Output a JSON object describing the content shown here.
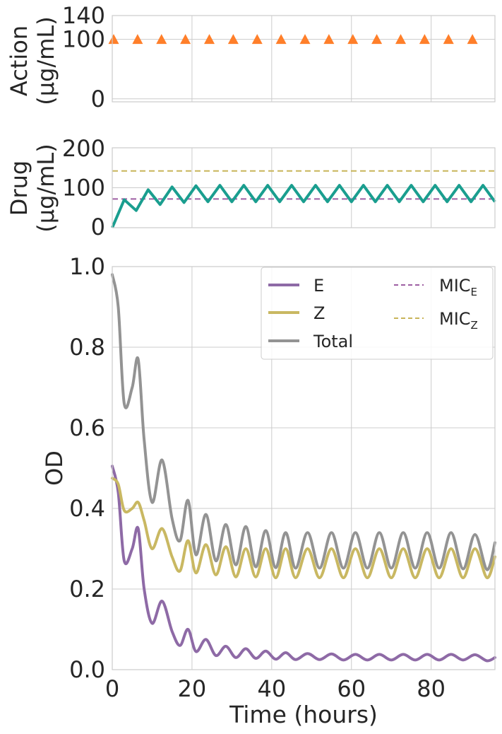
{
  "chart_data": [
    {
      "type": "scatter",
      "ylabel_line1": "Action",
      "ylabel_line2": "(µg/mL)",
      "ylim": [
        -5,
        140
      ],
      "xlim": [
        0,
        96
      ],
      "yticks": [
        "140",
        "100",
        "0"
      ],
      "ytick_values": [
        140,
        100,
        0
      ],
      "grid": true,
      "series": [
        {
          "marker": "triangle",
          "color": "#ff7f2a",
          "x": [
            0,
            6,
            12,
            18,
            24,
            30,
            36,
            42,
            48,
            54,
            60,
            66,
            72,
            78,
            84,
            90
          ],
          "y": [
            100,
            100,
            100,
            100,
            100,
            100,
            100,
            100,
            100,
            100,
            100,
            100,
            100,
            100,
            100,
            100
          ]
        }
      ]
    },
    {
      "type": "line",
      "ylabel_line1": "Drug",
      "ylabel_line2": "(µg/mL)",
      "ylim": [
        0,
        200
      ],
      "xlim": [
        0,
        96
      ],
      "yticks": [
        "200",
        "100",
        "0"
      ],
      "ytick_values": [
        200,
        100,
        0
      ],
      "grid": true,
      "series": [
        {
          "color": "#1a9e8f",
          "x": [
            0,
            3,
            6,
            9,
            12,
            15,
            18,
            21,
            24,
            27,
            30,
            33,
            36,
            39,
            42,
            45,
            48,
            51,
            54,
            57,
            60,
            63,
            66,
            69,
            72,
            75,
            78,
            81,
            84,
            87,
            90,
            93,
            96
          ],
          "y": [
            0,
            70,
            43,
            95,
            58,
            102,
            63,
            105,
            65,
            106,
            65,
            106,
            65,
            106,
            65,
            106,
            65,
            106,
            65,
            106,
            65,
            106,
            65,
            106,
            65,
            106,
            65,
            106,
            65,
            106,
            65,
            106,
            65
          ]
        }
      ],
      "hlines": [
        {
          "y": 72,
          "color": "#9e5fa3",
          "style": "dashed"
        },
        {
          "y": 142,
          "color": "#c8b55a",
          "style": "dashed"
        }
      ]
    },
    {
      "type": "line",
      "xlabel": "Time (hours)",
      "ylabel": "OD",
      "xlim": [
        0,
        96
      ],
      "ylim": [
        0.0,
        1.0
      ],
      "xticks": [
        "0",
        "20",
        "40",
        "60",
        "80"
      ],
      "xtick_values": [
        0,
        20,
        40,
        60,
        80
      ],
      "yticks": [
        "0.0",
        "0.2",
        "0.4",
        "0.6",
        "0.8",
        "1.0"
      ],
      "ytick_values": [
        0.0,
        0.2,
        0.4,
        0.6,
        0.8,
        1.0
      ],
      "grid": true,
      "legend_position": "top-right",
      "series": [
        {
          "name": "E",
          "color": "#8e6aa6",
          "x": [
            0,
            1.5,
            3,
            5,
            6.5,
            8,
            10,
            12.5,
            15,
            17,
            19,
            21,
            23.5,
            26,
            28.5,
            31,
            33.5,
            36,
            38.5,
            41,
            43.5,
            46,
            49,
            52,
            55,
            58,
            61,
            64,
            67,
            70,
            73,
            76,
            79,
            82,
            85,
            88,
            91,
            94,
            96
          ],
          "y": [
            0.505,
            0.44,
            0.27,
            0.3,
            0.35,
            0.2,
            0.115,
            0.17,
            0.095,
            0.06,
            0.1,
            0.045,
            0.075,
            0.035,
            0.058,
            0.03,
            0.052,
            0.028,
            0.046,
            0.026,
            0.042,
            0.025,
            0.04,
            0.025,
            0.039,
            0.024,
            0.038,
            0.024,
            0.038,
            0.024,
            0.038,
            0.024,
            0.038,
            0.024,
            0.038,
            0.024,
            0.037,
            0.022,
            0.03
          ]
        },
        {
          "name": "Z",
          "color": "#c9b862",
          "x": [
            0,
            1.5,
            3,
            5,
            6.5,
            8,
            10,
            12.5,
            15,
            17,
            19,
            21,
            23.5,
            26,
            28.5,
            31,
            33.5,
            36,
            38.5,
            41,
            43.5,
            46,
            49,
            52,
            55,
            58,
            61,
            64,
            67,
            70,
            73,
            76,
            79,
            82,
            85,
            88,
            91,
            94,
            96
          ],
          "y": [
            0.475,
            0.46,
            0.395,
            0.4,
            0.415,
            0.37,
            0.3,
            0.35,
            0.28,
            0.245,
            0.32,
            0.24,
            0.31,
            0.235,
            0.305,
            0.23,
            0.3,
            0.23,
            0.3,
            0.228,
            0.3,
            0.228,
            0.3,
            0.228,
            0.3,
            0.228,
            0.3,
            0.228,
            0.3,
            0.228,
            0.3,
            0.228,
            0.3,
            0.228,
            0.3,
            0.228,
            0.3,
            0.228,
            0.28
          ]
        },
        {
          "name": "Total",
          "color": "#939393",
          "x": [
            0,
            1.5,
            3,
            5,
            6.5,
            8,
            10,
            12.5,
            15,
            17,
            19,
            21,
            23.5,
            26,
            28.5,
            31,
            33.5,
            36,
            38.5,
            41,
            43.5,
            46,
            49,
            52,
            55,
            58,
            61,
            64,
            67,
            70,
            73,
            76,
            79,
            82,
            85,
            88,
            91,
            94,
            96
          ],
          "y": [
            0.98,
            0.9,
            0.66,
            0.7,
            0.77,
            0.57,
            0.415,
            0.52,
            0.375,
            0.32,
            0.42,
            0.285,
            0.385,
            0.27,
            0.36,
            0.26,
            0.355,
            0.255,
            0.345,
            0.253,
            0.34,
            0.252,
            0.34,
            0.252,
            0.34,
            0.252,
            0.34,
            0.252,
            0.34,
            0.252,
            0.34,
            0.252,
            0.34,
            0.252,
            0.34,
            0.25,
            0.335,
            0.248,
            0.315
          ]
        }
      ],
      "legend": [
        {
          "label": "E",
          "sub": "",
          "color": "#8e6aa6",
          "style": "solid"
        },
        {
          "label": "Z",
          "sub": "",
          "color": "#c9b862",
          "style": "solid"
        },
        {
          "label": "Total",
          "sub": "",
          "color": "#939393",
          "style": "solid"
        },
        {
          "label": "MIC",
          "sub": "E",
          "color": "#9e5fa3",
          "style": "dashed"
        },
        {
          "label": "MIC",
          "sub": "Z",
          "color": "#c8b55a",
          "style": "dashed"
        }
      ]
    }
  ]
}
